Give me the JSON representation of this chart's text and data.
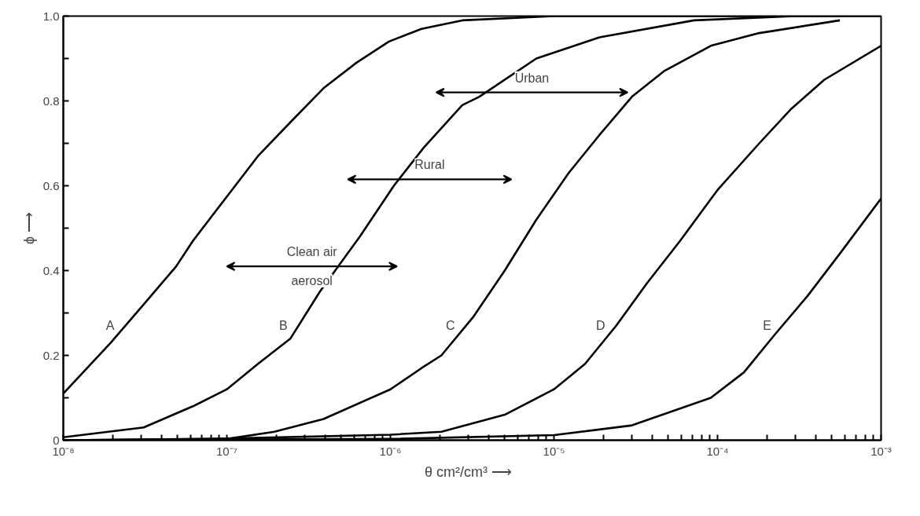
{
  "chart_data": {
    "type": "line",
    "xlabel": "θ  cm²/cm³  ⟶",
    "ylabel": "ϕ ⟶",
    "log": "x",
    "grid": false,
    "marker": "none",
    "line_style": "solid",
    "xlim": [
      1e-08,
      0.001
    ],
    "ylim": [
      0,
      1.0
    ],
    "xticks": [
      {
        "value": 1e-08,
        "label": "10⁻⁸"
      },
      {
        "value": 2e-08,
        "label": null
      },
      {
        "value": 3e-08,
        "label": null
      },
      {
        "value": 4e-08,
        "label": null
      },
      {
        "value": 5e-08,
        "label": null
      },
      {
        "value": 6e-08,
        "label": null
      },
      {
        "value": 7e-08,
        "label": null
      },
      {
        "value": 8e-08,
        "label": null
      },
      {
        "value": 9e-08,
        "label": null
      },
      {
        "value": 1e-07,
        "label": "10⁻⁷"
      },
      {
        "value": 2e-07,
        "label": null
      },
      {
        "value": 3e-07,
        "label": null
      },
      {
        "value": 4e-07,
        "label": null
      },
      {
        "value": 5e-07,
        "label": null
      },
      {
        "value": 6e-07,
        "label": null
      },
      {
        "value": 7e-07,
        "label": null
      },
      {
        "value": 8e-07,
        "label": null
      },
      {
        "value": 9e-07,
        "label": null
      },
      {
        "value": 1e-06,
        "label": "10⁻⁶"
      },
      {
        "value": 2e-06,
        "label": null
      },
      {
        "value": 3e-06,
        "label": null
      },
      {
        "value": 4e-06,
        "label": null
      },
      {
        "value": 5e-06,
        "label": null
      },
      {
        "value": 6e-06,
        "label": null
      },
      {
        "value": 7e-06,
        "label": null
      },
      {
        "value": 8e-06,
        "label": null
      },
      {
        "value": 9e-06,
        "label": null
      },
      {
        "value": 1e-05,
        "label": "10⁻⁵"
      },
      {
        "value": 2e-05,
        "label": null
      },
      {
        "value": 3e-05,
        "label": null
      },
      {
        "value": 4e-05,
        "label": null
      },
      {
        "value": 5e-05,
        "label": null
      },
      {
        "value": 6e-05,
        "label": null
      },
      {
        "value": 7e-05,
        "label": null
      },
      {
        "value": 8e-05,
        "label": null
      },
      {
        "value": 9e-05,
        "label": null
      },
      {
        "value": 0.0001,
        "label": "10⁻⁴"
      },
      {
        "value": 0.0002,
        "label": null
      },
      {
        "value": 0.0003,
        "label": null
      },
      {
        "value": 0.0004,
        "label": null
      },
      {
        "value": 0.0005,
        "label": null
      },
      {
        "value": 0.0006,
        "label": null
      },
      {
        "value": 0.0007,
        "label": null
      },
      {
        "value": 0.0008,
        "label": null
      },
      {
        "value": 0.0009,
        "label": null
      },
      {
        "value": 0.001,
        "label": "10⁻³"
      }
    ],
    "yticks": [
      0,
      {
        "value": 0.1,
        "label": null
      },
      0.2,
      {
        "value": 0.3,
        "label": null
      },
      0.4,
      {
        "value": 0.5,
        "label": null
      },
      0.6,
      {
        "value": 0.7,
        "label": null
      },
      0.8,
      {
        "value": 0.9,
        "label": null
      },
      {
        "value": 1.0,
        "label": "1.0"
      }
    ],
    "series": [
      {
        "name": "A",
        "color": "#000000",
        "x": [
          1e-08,
          1.95e-08,
          3.1e-08,
          4.9e-08,
          6.2e-08,
          9.8e-08,
          1.55e-07,
          2.45e-07,
          3.9e-07,
          6.2e-07,
          9.8e-07,
          1.55e-06,
          2.75e-06,
          1e-05,
          0.0001,
          0.001
        ],
        "values": [
          0.11,
          0.23,
          0.32,
          0.41,
          0.47,
          0.57,
          0.67,
          0.75,
          0.83,
          0.89,
          0.94,
          0.97,
          0.99,
          1.0,
          1.0,
          1.0
        ]
      },
      {
        "name": "B",
        "color": "#000000",
        "x": [
          1e-08,
          3.1e-08,
          6.2e-08,
          1e-07,
          1.55e-07,
          2.45e-07,
          3.7e-07,
          6.5e-07,
          1.05e-06,
          1.6e-06,
          2.75e-06,
          3.5e-06,
          7.8e-06,
          1.9e-05,
          7.2e-05,
          0.0003,
          0.00055
        ],
        "values": [
          0.007,
          0.03,
          0.08,
          0.12,
          0.18,
          0.24,
          0.35,
          0.48,
          0.6,
          0.69,
          0.79,
          0.81,
          0.9,
          0.95,
          0.99,
          1.0,
          1.0
        ]
      },
      {
        "name": "C",
        "color": "#000000",
        "x": [
          1e-08,
          1e-07,
          1.95e-07,
          3.9e-07,
          1e-06,
          1.55e-06,
          2.05e-06,
          3.2e-06,
          5e-06,
          7.8e-06,
          1.23e-05,
          1.9e-05,
          3e-05,
          4.7e-05,
          9.1e-05,
          0.00018,
          0.00056
        ],
        "values": [
          0.0,
          0.003,
          0.02,
          0.05,
          0.12,
          0.17,
          0.2,
          0.29,
          0.4,
          0.52,
          0.63,
          0.72,
          0.81,
          0.87,
          0.93,
          0.96,
          0.99
        ]
      },
      {
        "name": "D",
        "color": "#000000",
        "x": [
          1e-08,
          1e-07,
          1e-06,
          2.05e-06,
          5e-06,
          1e-05,
          1.55e-05,
          2.4e-05,
          3.7e-05,
          5.9e-05,
          0.0001,
          0.00018,
          0.00028,
          0.00045,
          0.001
        ],
        "values": [
          0.0,
          0.004,
          0.013,
          0.02,
          0.06,
          0.12,
          0.18,
          0.27,
          0.37,
          0.47,
          0.59,
          0.7,
          0.78,
          0.85,
          0.93
        ]
      },
      {
        "name": "E",
        "color": "#000000",
        "x": [
          1e-08,
          1e-06,
          1e-05,
          3e-05,
          9.1e-05,
          0.000145,
          0.000225,
          0.000355,
          0.00056,
          0.001
        ],
        "values": [
          0.0,
          0.003,
          0.012,
          0.035,
          0.1,
          0.16,
          0.25,
          0.34,
          0.44,
          0.57
        ]
      }
    ],
    "annotations": [
      "Clean air aerosol",
      "Rural",
      "Urban"
    ]
  }
}
